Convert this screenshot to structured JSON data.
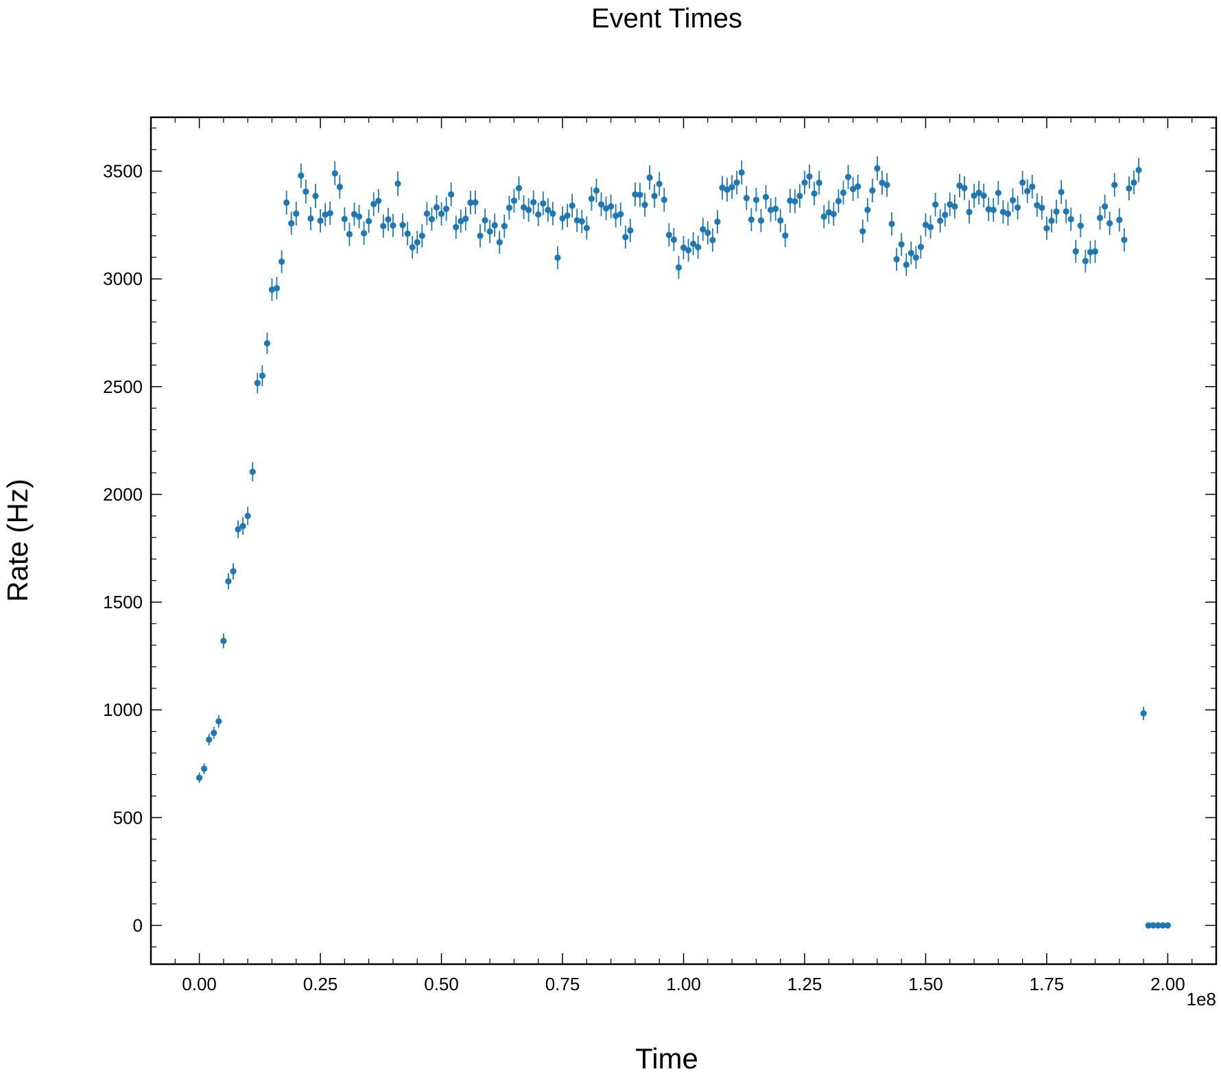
{
  "chart_data": {
    "type": "scatter",
    "title": "Event Times",
    "xlabel": "Time",
    "ylabel": "Rate (Hz)",
    "x_offset_label": "1e8",
    "xlim": [
      -10000000,
      210000000
    ],
    "ylim": [
      -180,
      3750
    ],
    "xticks": [
      0,
      25000000,
      50000000,
      75000000,
      100000000,
      125000000,
      150000000,
      175000000,
      200000000
    ],
    "xtick_labels": [
      "0.00",
      "0.25",
      "0.50",
      "0.75",
      "1.00",
      "1.25",
      "1.50",
      "1.75",
      "2.00"
    ],
    "yticks": [
      0,
      500,
      1000,
      1500,
      2000,
      2500,
      3000,
      3500
    ],
    "ytick_labels": [
      "0",
      "500",
      "1000",
      "1500",
      "2000",
      "2500",
      "3000",
      "3500"
    ],
    "grid": false,
    "color": "#1f77b4",
    "series": [
      {
        "x": [
          0,
          1000000,
          2000000,
          3000000,
          4000000,
          5000000,
          6000000,
          7000000,
          8000000,
          9000000,
          10000000,
          11000000,
          12000000,
          13000000,
          14000000,
          15000000,
          16000000,
          17000000,
          18000000,
          19000000,
          20000000,
          21000000,
          22000000,
          23000000,
          24000000,
          25000000,
          26000000,
          27000000,
          28000000,
          29000000,
          30000000,
          31000000,
          32000000,
          33000000,
          34000000,
          35000000,
          36000000,
          37000000,
          38000000,
          39000000,
          40000000,
          41000000,
          42000000,
          43000000,
          44000000,
          45000000,
          46000000,
          47000000,
          48000000,
          49000000,
          50000000,
          51000000,
          52000000,
          53000000,
          54000000,
          55000000,
          56000000,
          57000000,
          58000000,
          59000000,
          60000000,
          61000000,
          62000000,
          63000000,
          64000000,
          65000000,
          66000000,
          67000000,
          68000000,
          69000000,
          70000000,
          71000000,
          72000000,
          73000000,
          74000000,
          75000000,
          76000000,
          77000000,
          78000000,
          79000000,
          80000000,
          81000000,
          82000000,
          83000000,
          84000000,
          85000000,
          86000000,
          87000000,
          88000000,
          89000000,
          90000000,
          91000000,
          92000000,
          93000000,
          94000000,
          95000000,
          96000000,
          97000000,
          98000000,
          99000000,
          100000000,
          101000000,
          102000000,
          103000000,
          104000000,
          105000000,
          106000000,
          107000000,
          108000000,
          109000000,
          110000000,
          111000000,
          112000000,
          113000000,
          114000000,
          115000000,
          116000000,
          117000000,
          118000000,
          119000000,
          120000000,
          121000000,
          122000000,
          123000000,
          124000000,
          125000000,
          126000000,
          127000000,
          128000000,
          129000000,
          130000000,
          131000000,
          132000000,
          133000000,
          134000000,
          135000000,
          136000000,
          137000000,
          138000000,
          139000000,
          140000000,
          141000000,
          142000000,
          143000000,
          144000000,
          145000000,
          146000000,
          147000000,
          148000000,
          149000000,
          150000000,
          151000000,
          152000000,
          153000000,
          154000000,
          155000000,
          156000000,
          157000000,
          158000000,
          159000000,
          160000000,
          161000000,
          162000000,
          163000000,
          164000000,
          165000000,
          166000000,
          167000000,
          168000000,
          169000000,
          170000000,
          171000000,
          172000000,
          173000000,
          174000000,
          175000000,
          176000000,
          177000000,
          178000000,
          179000000,
          180000000,
          181000000,
          182000000,
          183000000,
          184000000,
          185000000,
          186000000,
          187000000,
          188000000,
          189000000,
          190000000,
          191000000,
          192000000,
          193000000,
          194000000,
          195000000,
          196000000,
          197000000,
          198000000,
          199000000,
          200000000
        ],
        "y": [
          685,
          727,
          862,
          893,
          947,
          1320,
          1597,
          1643,
          1838,
          1853,
          1900,
          2105,
          2517,
          2551,
          2701,
          2950,
          2957,
          3080,
          3354,
          3258,
          3303,
          3479,
          3405,
          3280,
          3385,
          3270,
          3298,
          3305,
          3490,
          3427,
          3278,
          3207,
          3300,
          3289,
          3212,
          3268,
          3347,
          3362,
          3245,
          3276,
          3248,
          3442,
          3250,
          3210,
          3147,
          3170,
          3200,
          3303,
          3277,
          3332,
          3302,
          3325,
          3392,
          3240,
          3268,
          3279,
          3354,
          3355,
          3200,
          3272,
          3220,
          3249,
          3170,
          3245,
          3330,
          3363,
          3421,
          3332,
          3320,
          3356,
          3299,
          3350,
          3320,
          3303,
          3098,
          3281,
          3294,
          3340,
          3272,
          3267,
          3236,
          3372,
          3410,
          3346,
          3327,
          3336,
          3293,
          3300,
          3194,
          3225,
          3392,
          3390,
          3344,
          3470,
          3385,
          3441,
          3367,
          3204,
          3182,
          3053,
          3145,
          3133,
          3163,
          3147,
          3230,
          3214,
          3180,
          3265,
          3423,
          3414,
          3426,
          3447,
          3494,
          3375,
          3275,
          3367,
          3271,
          3380,
          3320,
          3325,
          3271,
          3201,
          3363,
          3360,
          3385,
          3447,
          3475,
          3396,
          3446,
          3289,
          3309,
          3301,
          3361,
          3400,
          3473,
          3417,
          3429,
          3221,
          3320,
          3410,
          3513,
          3446,
          3436,
          3255,
          3091,
          3160,
          3066,
          3120,
          3099,
          3148,
          3251,
          3240,
          3345,
          3270,
          3297,
          3346,
          3336,
          3433,
          3421,
          3310,
          3386,
          3400,
          3386,
          3323,
          3320,
          3399,
          3311,
          3302,
          3365,
          3331,
          3447,
          3407,
          3428,
          3342,
          3330,
          3235,
          3270,
          3312,
          3403,
          3313,
          3277,
          3128,
          3247,
          3083,
          3124,
          3127,
          3283,
          3336,
          3258,
          3436,
          3274,
          3181,
          3420,
          3447,
          3505,
          984,
          0,
          0,
          0,
          0,
          0
        ],
        "yerr": [
          24,
          25,
          27,
          28,
          29,
          34,
          38,
          38,
          41,
          41,
          42,
          44,
          48,
          49,
          50,
          52,
          52,
          53,
          55,
          54,
          55,
          56,
          55,
          54,
          55,
          54,
          54,
          54,
          56,
          55,
          54,
          54,
          54,
          54,
          54,
          54,
          55,
          55,
          54,
          54,
          54,
          56,
          54,
          54,
          53,
          53,
          54,
          54,
          54,
          55,
          54,
          55,
          55,
          54,
          54,
          54,
          55,
          55,
          54,
          54,
          54,
          54,
          53,
          54,
          55,
          55,
          55,
          55,
          55,
          55,
          54,
          55,
          55,
          54,
          53,
          54,
          54,
          55,
          54,
          54,
          54,
          55,
          55,
          55,
          55,
          55,
          54,
          54,
          53,
          54,
          55,
          55,
          55,
          56,
          55,
          55,
          55,
          54,
          54,
          53,
          54,
          53,
          54,
          54,
          54,
          54,
          54,
          54,
          55,
          55,
          55,
          55,
          56,
          55,
          54,
          55,
          54,
          55,
          55,
          55,
          54,
          54,
          55,
          55,
          55,
          55,
          56,
          55,
          55,
          54,
          54,
          54,
          55,
          55,
          56,
          55,
          55,
          54,
          55,
          55,
          56,
          55,
          55,
          54,
          53,
          53,
          53,
          53,
          53,
          54,
          54,
          54,
          55,
          54,
          54,
          55,
          55,
          55,
          55,
          54,
          55,
          55,
          55,
          55,
          55,
          55,
          54,
          54,
          55,
          55,
          55,
          55,
          55,
          55,
          55,
          54,
          54,
          55,
          55,
          55,
          54,
          53,
          54,
          53,
          53,
          53,
          54,
          55,
          54,
          55,
          54,
          54,
          55,
          55,
          56,
          31,
          0,
          0,
          0,
          0,
          0
        ]
      }
    ]
  }
}
